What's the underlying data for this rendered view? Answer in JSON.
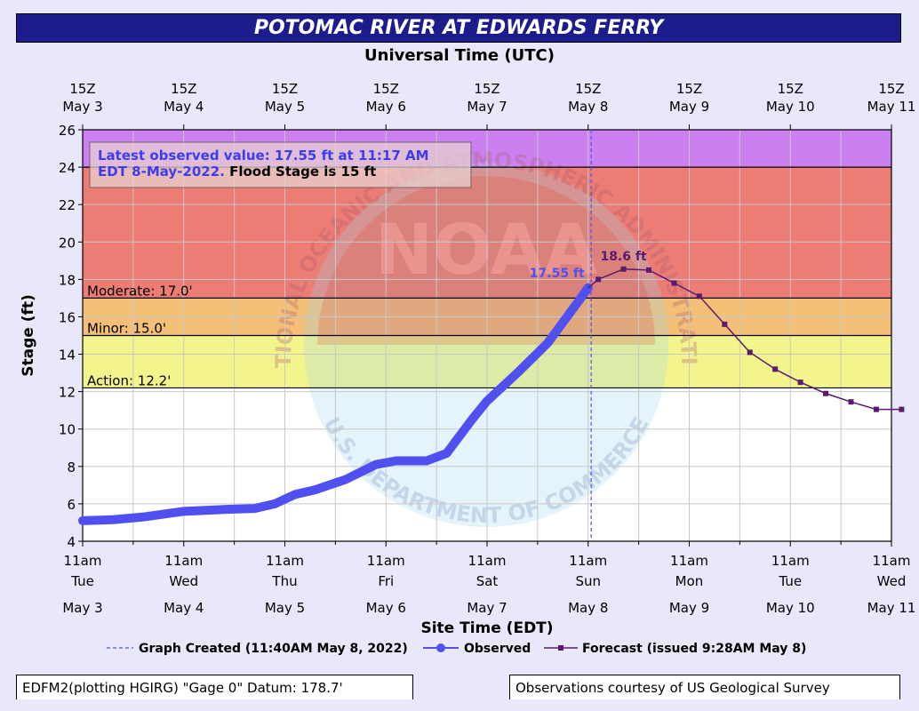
{
  "title": "POTOMAC RIVER AT EDWARDS FERRY",
  "top_axis_title": "Universal Time (UTC)",
  "footer": {
    "left": "EDFM2(plotting HGIRG) \"Gage 0\" Datum: 178.7'",
    "right": "Observations courtesy of US Geological Survey"
  },
  "chart_data": {
    "type": "line",
    "title": "POTOMAC RIVER AT EDWARDS FERRY",
    "xlabel": "Site Time (EDT)",
    "ylabel": "Stage (ft)",
    "ylim": [
      4,
      26
    ],
    "yticks": [
      4,
      6,
      8,
      10,
      12,
      14,
      16,
      18,
      20,
      22,
      24,
      26
    ],
    "xlim_days": [
      0,
      8
    ],
    "x_axis_unit": "days after 11am EDT May 3 2022",
    "bottom_ticks": [
      {
        "time": "11am",
        "day": "Tue",
        "date": "May 3"
      },
      {
        "time": "11am",
        "day": "Wed",
        "date": "May 4"
      },
      {
        "time": "11am",
        "day": "Thu",
        "date": "May 5"
      },
      {
        "time": "11am",
        "day": "Fri",
        "date": "May 6"
      },
      {
        "time": "11am",
        "day": "Sat",
        "date": "May 7"
      },
      {
        "time": "11am",
        "day": "Sun",
        "date": "May 8"
      },
      {
        "time": "11am",
        "day": "Mon",
        "date": "May 9"
      },
      {
        "time": "11am",
        "day": "Tue",
        "date": "May 10"
      },
      {
        "time": "11am",
        "day": "Wed",
        "date": "May 11"
      }
    ],
    "top_ticks": [
      {
        "time": "15Z",
        "date": "May 3"
      },
      {
        "time": "15Z",
        "date": "May 4"
      },
      {
        "time": "15Z",
        "date": "May 5"
      },
      {
        "time": "15Z",
        "date": "May 6"
      },
      {
        "time": "15Z",
        "date": "May 7"
      },
      {
        "time": "15Z",
        "date": "May 8"
      },
      {
        "time": "15Z",
        "date": "May 9"
      },
      {
        "time": "15Z",
        "date": "May 10"
      },
      {
        "time": "15Z",
        "date": "May 11"
      }
    ],
    "flood_zones": [
      {
        "from": 4,
        "to": 12.2,
        "color": "#ffffff"
      },
      {
        "from": 12.2,
        "to": 15,
        "color": "#f4f48c"
      },
      {
        "from": 15,
        "to": 17,
        "color": "#f4c078"
      },
      {
        "from": 17,
        "to": 24,
        "color": "#ec7c74"
      },
      {
        "from": 24,
        "to": 26,
        "color": "#cc80f0"
      }
    ],
    "thresholds": [
      {
        "label": "Action: 12.2'",
        "value": 12.2
      },
      {
        "label": "Minor: 15.0'",
        "value": 15.0
      },
      {
        "label": "Moderate: 17.0'",
        "value": 17.0
      },
      {
        "label": "",
        "value": 24.0
      }
    ],
    "observed": {
      "name": "Observed",
      "color": "#5050f0",
      "x": [
        0,
        0.3,
        0.6,
        1.0,
        1.4,
        1.7,
        1.9,
        2.1,
        2.3,
        2.6,
        2.9,
        3.1,
        3.4,
        3.6,
        3.85,
        4.0,
        4.3,
        4.6,
        4.9,
        5.0
      ],
      "y": [
        5.1,
        5.15,
        5.3,
        5.6,
        5.7,
        5.75,
        6.0,
        6.5,
        6.75,
        7.3,
        8.1,
        8.3,
        8.3,
        8.7,
        10.5,
        11.5,
        13.0,
        14.6,
        16.8,
        17.55
      ],
      "label": "17.55 ft"
    },
    "forecast": {
      "name": "Forecast (issued 9:28AM May 8)",
      "color": "#5a1a6e",
      "x": [
        5.0,
        5.1,
        5.35,
        5.6,
        5.85,
        6.1,
        6.35,
        6.6,
        6.85,
        7.1,
        7.35,
        7.6,
        7.85,
        8.1
      ],
      "y": [
        17.55,
        18.0,
        18.55,
        18.5,
        17.8,
        17.1,
        15.6,
        14.1,
        13.2,
        12.5,
        11.9,
        11.45,
        11.05,
        11.05
      ],
      "label": "18.6 ft"
    },
    "graph_created_x": 5.03,
    "annotation": {
      "line1": "Latest observed value: 17.55 ft at 11:17 AM",
      "line2_blue": "EDT 8-May-2022.",
      "line2_black": " Flood Stage is 15 ft"
    },
    "legend": [
      {
        "label": "Graph Created (11:40AM May 8, 2022)",
        "style": "dashed",
        "color": "#5050f0"
      },
      {
        "label": "Observed",
        "style": "marker-line",
        "color": "#5050f0"
      },
      {
        "label": "Forecast (issued 9:28AM May 8)",
        "style": "square-line",
        "color": "#5a1a6e"
      }
    ],
    "watermark": {
      "ring_top": "NATIONAL OCEANIC AND ATMOSPHERIC ADMINISTRATION",
      "ring_bottom": "U.S. DEPARTMENT OF COMMERCE",
      "center": "NOAA"
    },
    "grid": true,
    "legend_position": "bottom"
  }
}
